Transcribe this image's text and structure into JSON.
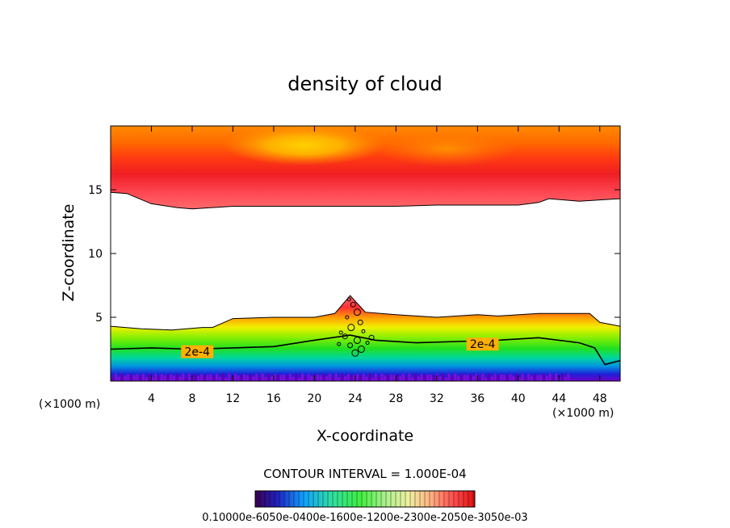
{
  "chart_data": {
    "type": "heatmap",
    "title": "density of cloud",
    "xlabel": "X-coordinate",
    "ylabel": "Z-coordinate",
    "x_unit": "(×1000 m)",
    "y_unit": "(×1000 m)",
    "xlim": [
      0,
      50
    ],
    "ylim": [
      0,
      20
    ],
    "x_ticks": [
      4,
      8,
      12,
      16,
      20,
      24,
      28,
      32,
      36,
      40,
      44,
      48
    ],
    "y_ticks": [
      5,
      10,
      15
    ],
    "contour_interval_text": "CONTOUR INTERVAL = 1.000E-04",
    "contour_labels": [
      {
        "text": "2e-4",
        "x": 8.5,
        "z": 2.3
      },
      {
        "text": "2e-4",
        "x": 36.5,
        "z": 2.9
      }
    ],
    "colorbar": {
      "min": 0.0001,
      "max": 0.003,
      "tick_labels_text": "0.10000e-6050e-0400e-1600e-1200e-2300e-2050e-3050e-03"
    },
    "upper_layer": {
      "description": "cloud layer near top of domain",
      "boundary_z": [
        14.8,
        14.7,
        13.9,
        13.6,
        13.5,
        13.6,
        13.7,
        13.7,
        13.7,
        13.7,
        13.7,
        13.8,
        13.8,
        13.8,
        14.0,
        14.3,
        14.1,
        14.3
      ],
      "boundary_x": [
        0,
        1.6,
        4,
        6.5,
        8,
        10,
        12,
        16,
        20,
        24,
        28,
        32,
        36,
        40,
        42,
        43,
        46,
        50
      ],
      "max_z": 19.5,
      "core_x": 19,
      "core_z": 18.5
    },
    "lower_layer": {
      "top_z": [
        4.3,
        4.1,
        4.0,
        4.2,
        4.2,
        4.9,
        5.0,
        5.0,
        5.3,
        6.7,
        5.4,
        5.2,
        5.0,
        5.2,
        5.1,
        5.3,
        5.3,
        4.6,
        4.3
      ],
      "top_x": [
        0,
        3,
        6,
        9,
        10,
        12,
        16,
        20,
        22,
        23.5,
        25,
        28,
        32,
        36,
        38,
        42,
        47,
        48,
        50
      ],
      "contour_2e4_z": [
        2.5,
        2.6,
        2.5,
        2.6,
        2.7,
        3.2,
        3.6,
        3.2,
        3.0,
        3.1,
        3.2,
        3.4,
        3.0,
        2.6,
        1.3,
        1.6
      ],
      "contour_2e4_x": [
        0,
        4,
        8,
        12,
        16,
        20,
        23.5,
        26,
        30,
        34,
        38,
        42,
        46,
        47.5,
        48.5,
        50
      ]
    }
  }
}
